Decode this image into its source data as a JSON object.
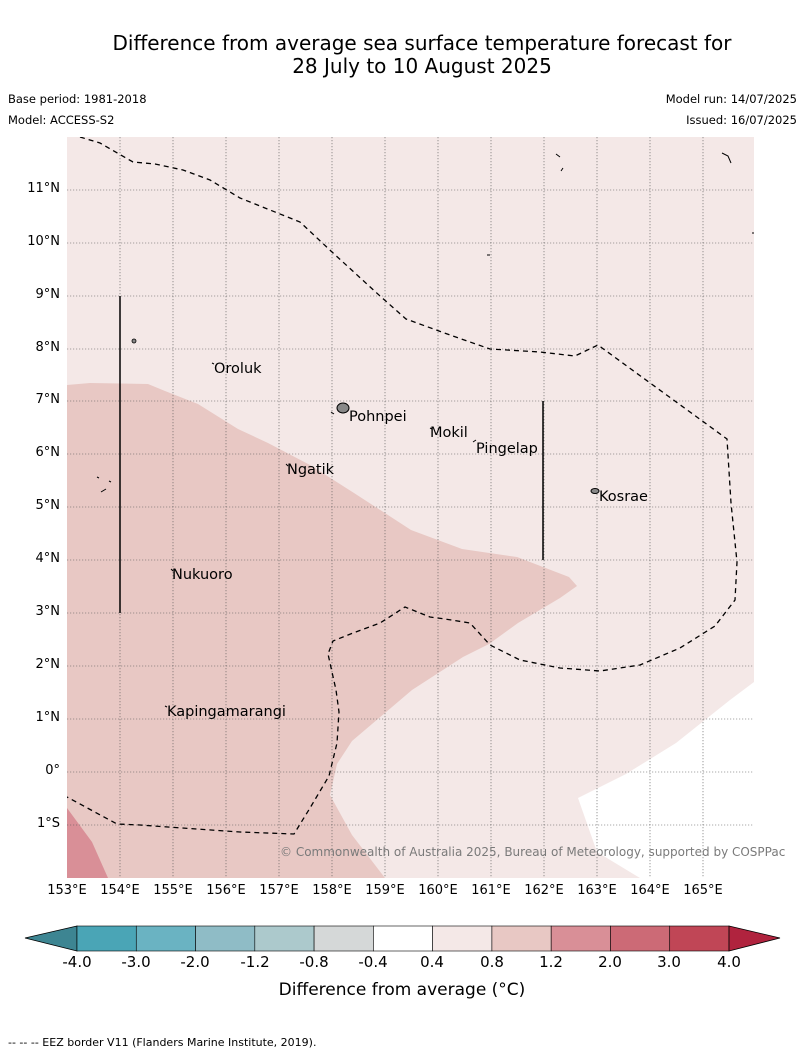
{
  "title_line1": "Difference from average sea surface temperature forecast for",
  "title_line2": "28 July to 10 August 2025",
  "base_period": "Base period: 1981-2018",
  "model": "Model: ACCESS-S2",
  "model_run": "Model run: 14/07/2025",
  "issued": "Issued: 16/07/2025",
  "lat_labels": [
    "11°N",
    "10°N",
    "9°N",
    "8°N",
    "7°N",
    "6°N",
    "5°N",
    "4°N",
    "3°N",
    "2°N",
    "1°N",
    "0°",
    "1°S"
  ],
  "lon_labels": [
    "153°E",
    "154°E",
    "155°E",
    "156°E",
    "157°E",
    "158°E",
    "159°E",
    "160°E",
    "161°E",
    "162°E",
    "163°E",
    "164°E",
    "165°E"
  ],
  "places": {
    "oroluk": "Oroluk",
    "pohnpei": "Pohnpei",
    "mokil": "Mokil",
    "pingelap": "Pingelap",
    "ngatik": "Ngatik",
    "kosrae": "Kosrae",
    "nukuoro": "Nukuoro",
    "kapingamarangi": "Kapingamarangi"
  },
  "copyright": "© Commonwealth of Australia 2025, Bureau of Meteorology, supported by COSPPac",
  "colorbar": {
    "ticks": [
      "-4.0",
      "-3.0",
      "-2.0",
      "-1.2",
      "-0.8",
      "-0.4",
      "0.4",
      "0.8",
      "1.2",
      "2.0",
      "3.0",
      "4.0"
    ],
    "colors": [
      "#3d8592",
      "#4aa5b6",
      "#6ab3c2",
      "#8fbcc6",
      "#acc9cc",
      "#d5d8d8",
      "#ffffff",
      "#f4e8e7",
      "#e8c8c4",
      "#d98f97",
      "#cc6a76",
      "#c04656",
      "#b0233e"
    ],
    "label": "Difference from average (°C)"
  },
  "footnote": "--  --  -- EEZ border V11 (Flanders Marine Institute, 2019)."
}
